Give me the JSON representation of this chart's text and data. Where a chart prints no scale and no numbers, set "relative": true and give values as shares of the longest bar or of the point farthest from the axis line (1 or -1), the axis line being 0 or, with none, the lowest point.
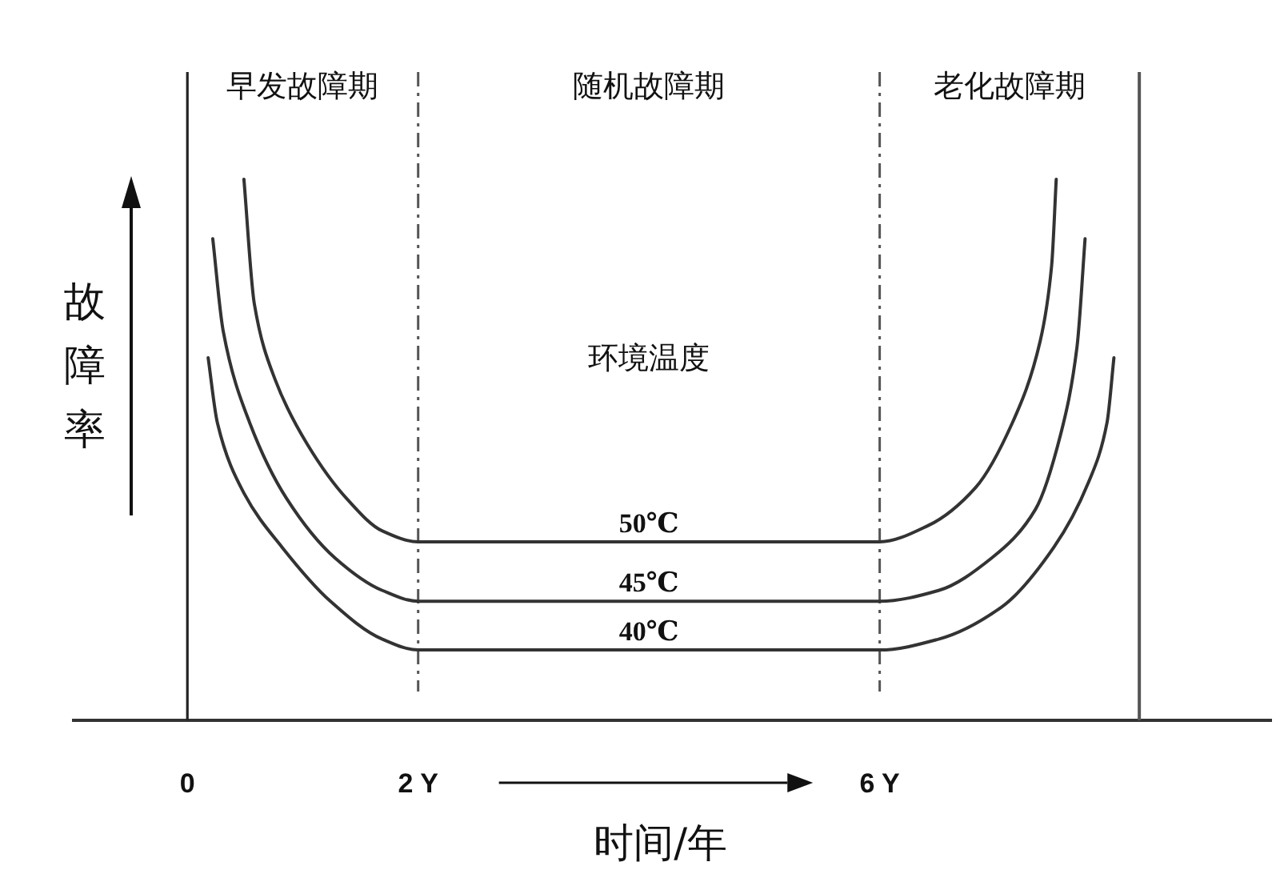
{
  "chart_data": {
    "type": "line",
    "relative": true,
    "xlabel": "时间/年",
    "ylabel": "故障率",
    "xlim": [
      -1,
      9.4
    ],
    "xticks": [
      0,
      {
        "value": 2,
        "label": "2 Y"
      },
      {
        "value": 6,
        "label": "6 Y"
      }
    ],
    "annotations": [
      "早发故障期",
      "随机故障期",
      "老化故障期",
      "环境温度"
    ],
    "ref_lines": [
      {
        "axis": "x",
        "value": 2,
        "line_style": "dashed"
      },
      {
        "axis": "x",
        "value": 6,
        "line_style": "dashed"
      },
      {
        "axis": "x",
        "value": 8.25,
        "line_style": "solid"
      }
    ],
    "grid": false,
    "legend": false,
    "marker": "none",
    "line_style": "solid",
    "series": [
      {
        "name": "50℃",
        "color": "#333333",
        "x": [
          0.49,
          0.58,
          0.76,
          1.04,
          1.38,
          1.69,
          2.0,
          6.0,
          6.42,
          6.83,
          7.15,
          7.39,
          7.49,
          7.53
        ],
        "values": [
          1.0,
          0.77,
          0.63,
          0.51,
          0.41,
          0.35,
          0.33,
          0.33,
          0.36,
          0.43,
          0.55,
          0.7,
          0.84,
          1.0
        ]
      },
      {
        "name": "45℃",
        "color": "#333333",
        "x": [
          0.22,
          0.31,
          0.54,
          0.86,
          1.28,
          1.69,
          2.0,
          6.0,
          6.51,
          6.97,
          7.35,
          7.57,
          7.71,
          7.78
        ],
        "values": [
          0.89,
          0.72,
          0.55,
          0.41,
          0.3,
          0.24,
          0.22,
          0.22,
          0.24,
          0.3,
          0.39,
          0.53,
          0.69,
          0.89
        ]
      },
      {
        "name": "40℃",
        "color": "#333333",
        "x": [
          0.18,
          0.26,
          0.49,
          0.82,
          1.24,
          1.69,
          2.0,
          6.0,
          6.51,
          7.06,
          7.51,
          7.81,
          7.97,
          8.03
        ],
        "values": [
          0.67,
          0.55,
          0.42,
          0.32,
          0.22,
          0.15,
          0.13,
          0.13,
          0.15,
          0.21,
          0.32,
          0.44,
          0.55,
          0.67
        ]
      }
    ]
  }
}
